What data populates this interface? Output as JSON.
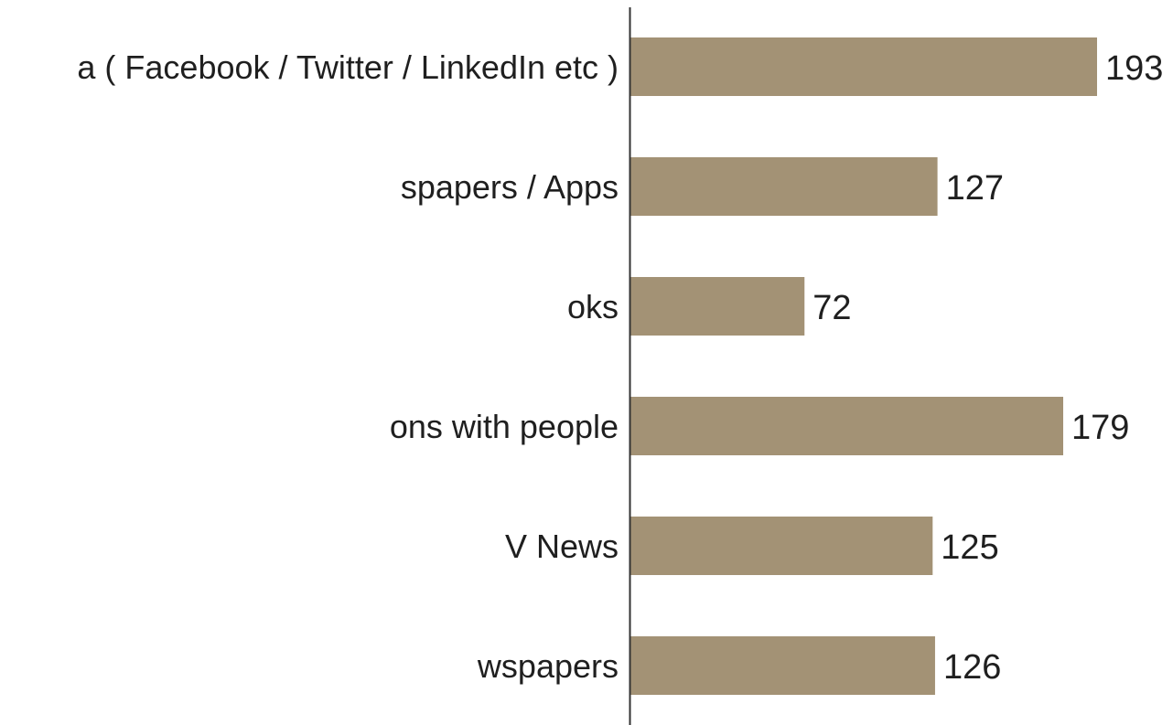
{
  "chart_data": {
    "type": "bar",
    "orientation": "horizontal",
    "categories": [
      "a ( Facebook / Twitter / LinkedIn etc )",
      "spapers / Apps",
      "oks",
      "ons with people",
      "V News",
      "wspapers"
    ],
    "values": [
      193,
      127,
      72,
      179,
      125,
      126
    ],
    "data_labels": [
      "193",
      "127",
      "72",
      "179",
      "125",
      "126"
    ],
    "bar_color": "#a39275",
    "axis_color": "#333333",
    "grid": false,
    "xlim": [
      0,
      200
    ]
  }
}
